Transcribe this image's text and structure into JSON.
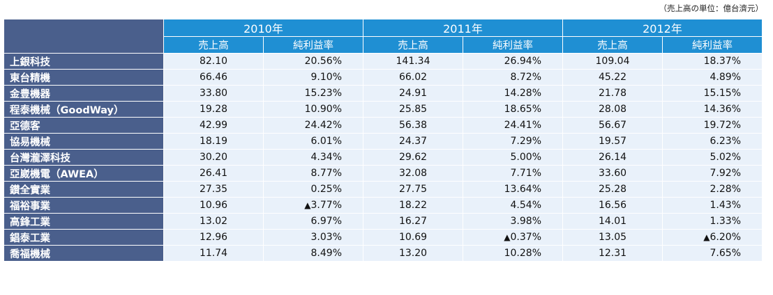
{
  "unit_note": "（売上高の単位：億台濟元）",
  "years": [
    "2010年",
    "2011年",
    "2012年"
  ],
  "sub_headers": [
    "売上高",
    "純利益率"
  ],
  "rows": [
    {
      "company": "上銀科技",
      "values": [
        {
          "rev": "82.10",
          "pct": "20.56%"
        },
        {
          "rev": "141.34",
          "pct": "26.94%"
        },
        {
          "rev": "109.04",
          "pct": "18.37%"
        }
      ]
    },
    {
      "company": "東台精機",
      "values": [
        {
          "rev": "66.46",
          "pct": "9.10%"
        },
        {
          "rev": "66.02",
          "pct": "8.72%"
        },
        {
          "rev": "45.22",
          "pct": "4.89%"
        }
      ]
    },
    {
      "company": "金豊機器",
      "values": [
        {
          "rev": "33.80",
          "pct": "15.23%"
        },
        {
          "rev": "24.91",
          "pct": "14.28%"
        },
        {
          "rev": "21.78",
          "pct": "15.15%"
        }
      ]
    },
    {
      "company": "程泰機械（GoodWay）",
      "values": [
        {
          "rev": "19.28",
          "pct": "10.90%"
        },
        {
          "rev": "25.85",
          "pct": "18.65%"
        },
        {
          "rev": "28.08",
          "pct": "14.36%"
        }
      ]
    },
    {
      "company": "亞德客",
      "values": [
        {
          "rev": "42.99",
          "pct": "24.42%"
        },
        {
          "rev": "56.38",
          "pct": "24.41%"
        },
        {
          "rev": "56.67",
          "pct": "19.72%"
        }
      ]
    },
    {
      "company": "協易機械",
      "values": [
        {
          "rev": "18.19",
          "pct": "6.01%"
        },
        {
          "rev": "24.37",
          "pct": "7.29%"
        },
        {
          "rev": "19.57",
          "pct": "6.23%"
        }
      ]
    },
    {
      "company": "台灣瀧澤科技",
      "values": [
        {
          "rev": "30.20",
          "pct": "4.34%"
        },
        {
          "rev": "29.62",
          "pct": "5.00%"
        },
        {
          "rev": "26.14",
          "pct": "5.02%"
        }
      ]
    },
    {
      "company": "亞崴機電（AWEA）",
      "values": [
        {
          "rev": "26.41",
          "pct": "8.77%"
        },
        {
          "rev": "32.08",
          "pct": "7.71%"
        },
        {
          "rev": "33.60",
          "pct": "7.92%"
        }
      ]
    },
    {
      "company": "鑚全實業",
      "values": [
        {
          "rev": "27.35",
          "pct": "0.25%"
        },
        {
          "rev": "27.75",
          "pct": "13.64%"
        },
        {
          "rev": "25.28",
          "pct": "2.28%"
        }
      ]
    },
    {
      "company": "福裕事業",
      "values": [
        {
          "rev": "10.96",
          "pct": "3.77%",
          "negative": true
        },
        {
          "rev": "18.22",
          "pct": "4.54%"
        },
        {
          "rev": "16.56",
          "pct": "1.43%"
        }
      ]
    },
    {
      "company": "高鋒工業",
      "values": [
        {
          "rev": "13.02",
          "pct": "6.97%"
        },
        {
          "rev": "16.27",
          "pct": "3.98%"
        },
        {
          "rev": "14.01",
          "pct": "1.33%"
        }
      ]
    },
    {
      "company": "錩泰工業",
      "values": [
        {
          "rev": "12.96",
          "pct": "3.03%"
        },
        {
          "rev": "10.69",
          "pct": "0.37%",
          "negative": true
        },
        {
          "rev": "13.05",
          "pct": "6.20%",
          "negative": true
        }
      ]
    },
    {
      "company": "喬福機械",
      "values": [
        {
          "rev": "11.74",
          "pct": "8.49%"
        },
        {
          "rev": "13.20",
          "pct": "10.28%"
        },
        {
          "rev": "12.31",
          "pct": "7.65%"
        }
      ]
    }
  ],
  "negative_marker": "▲"
}
